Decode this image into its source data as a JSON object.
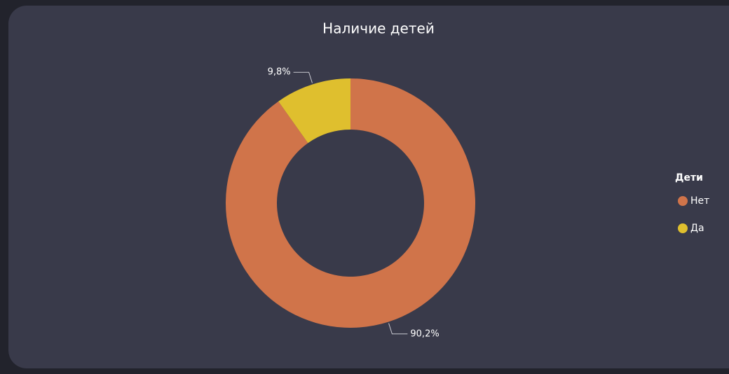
{
  "chart_data": {
    "type": "pie",
    "title": "Наличие детей",
    "legend_title": "Дети",
    "categories": [
      "Нет",
      "Да"
    ],
    "values": [
      90.2,
      9.8
    ],
    "value_labels": [
      "90,2%",
      "9,8%"
    ],
    "colors": [
      "#d0744a",
      "#dfbf2e"
    ],
    "donut": true,
    "legend": "right"
  }
}
